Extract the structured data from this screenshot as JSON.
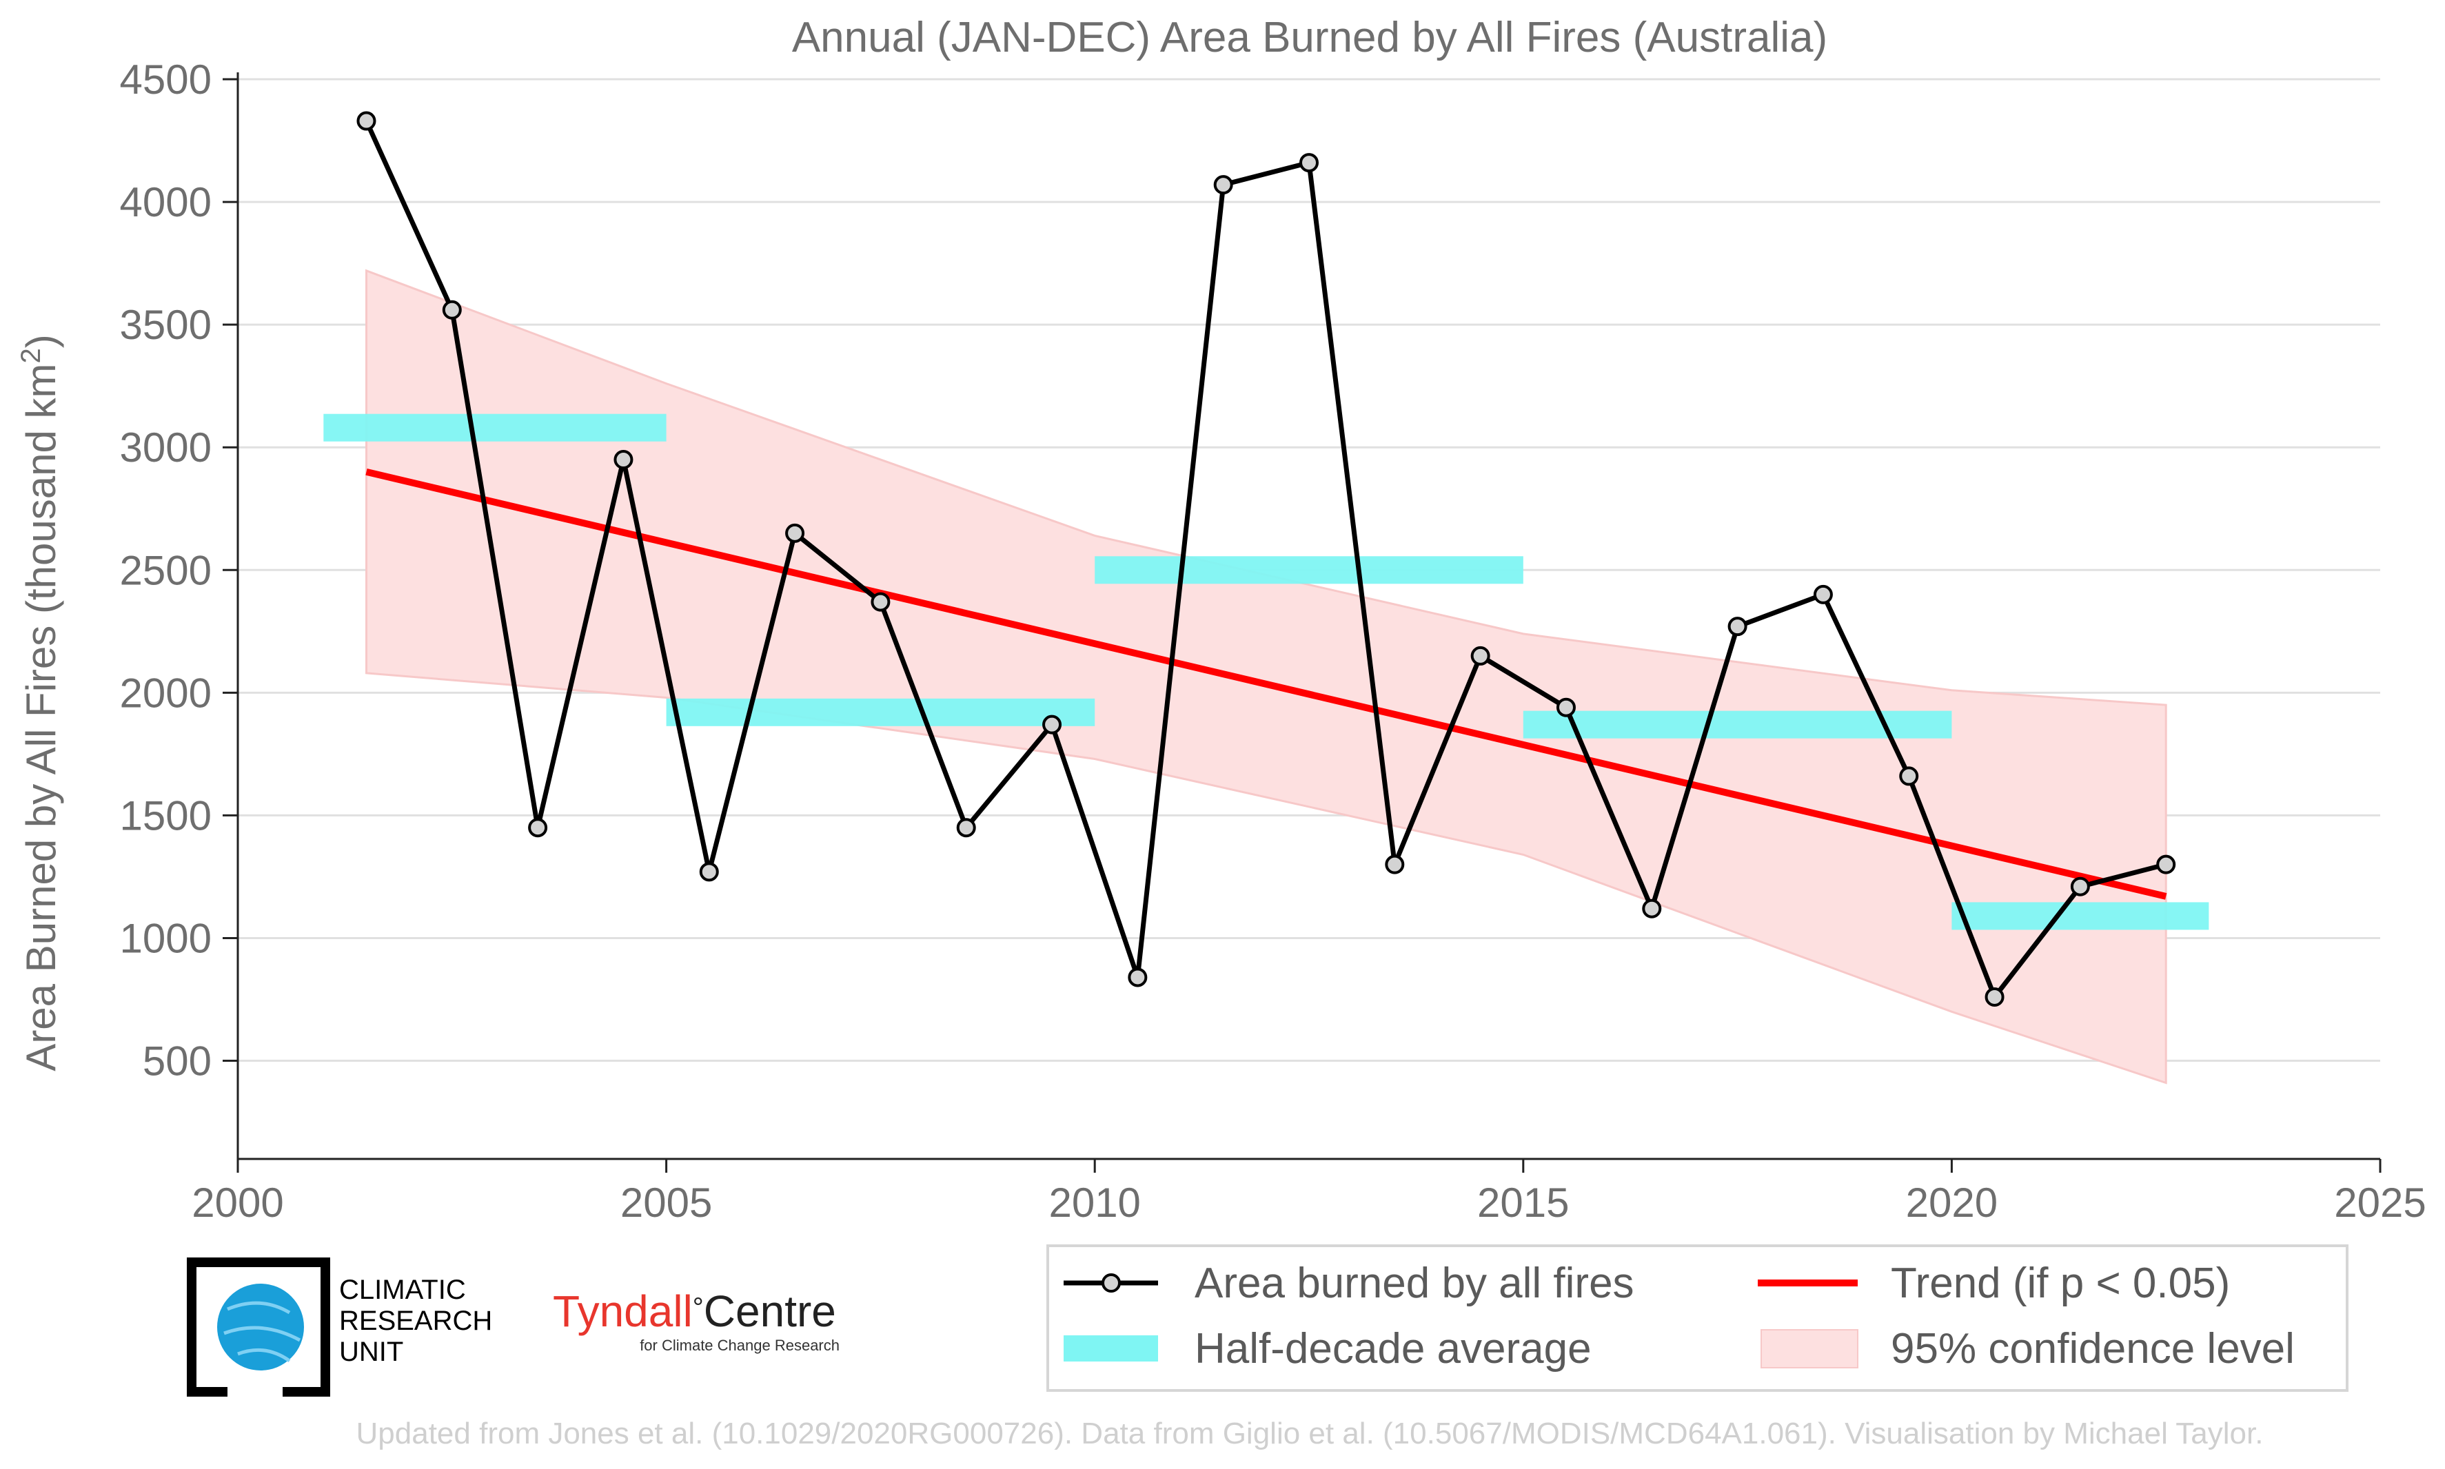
{
  "chart_data": {
    "type": "line",
    "title": "Annual (JAN-DEC) Area Burned by All Fires (Australia)",
    "ylabel_main": "Area Burned by All Fires (thousand km",
    "ylabel_sup": "2",
    "ylabel_close": ")",
    "xlim": [
      2000,
      2025
    ],
    "ylim": [
      100,
      4500
    ],
    "xticks": [
      2000,
      2005,
      2010,
      2015,
      2020,
      2025
    ],
    "yticks": [
      500,
      1000,
      1500,
      2000,
      2500,
      3000,
      3500,
      4000,
      4500
    ],
    "grid": true,
    "series": [
      {
        "name": "Area burned by all fires",
        "x": [
          2001.5,
          2002.5,
          2003.5,
          2004.5,
          2005.5,
          2006.5,
          2007.5,
          2008.5,
          2009.5,
          2010.5,
          2011.5,
          2012.5,
          2013.5,
          2014.5,
          2015.5,
          2016.5,
          2017.5,
          2018.5,
          2019.5,
          2020.5,
          2021.5,
          2022.5
        ],
        "values": [
          4330,
          3560,
          1450,
          2950,
          1270,
          2650,
          2370,
          1450,
          1870,
          840,
          4070,
          4160,
          1300,
          2150,
          1940,
          1120,
          2270,
          2400,
          1660,
          760,
          1210,
          1300
        ]
      }
    ],
    "half_decade_averages": {
      "name": "Half-decade average",
      "segments": [
        {
          "x0": 2001,
          "x1": 2005,
          "y": 3080
        },
        {
          "x0": 2005,
          "x1": 2010,
          "y": 1920
        },
        {
          "x0": 2010,
          "x1": 2015,
          "y": 2500
        },
        {
          "x0": 2015,
          "x1": 2020,
          "y": 1870
        },
        {
          "x0": 2020,
          "x1": 2023,
          "y": 1090
        }
      ]
    },
    "trend": {
      "name": "Trend (if p < 0.05)",
      "x": [
        2001.5,
        2022.5
      ],
      "y": [
        2900,
        1170
      ]
    },
    "confidence_band": {
      "name": "95% confidence level",
      "x": [
        2001.5,
        2005,
        2010,
        2015,
        2020,
        2022.5
      ],
      "upper": [
        3720,
        3260,
        2640,
        2240,
        2010,
        1950
      ],
      "lower": [
        2080,
        1980,
        1730,
        1340,
        700,
        410
      ]
    },
    "legend": {
      "placement": "bottom-right",
      "items": [
        "Area burned by all fires",
        "Trend (if p < 0.05)",
        "Half-decade average",
        "95% confidence level"
      ]
    },
    "colors": {
      "series": "#000000",
      "marker_fill": "#d3d3d3",
      "trend": "#ff0000",
      "half_decade": "#7ff5f3",
      "band": "#fde0e0",
      "band_edge": "#f7c8c8",
      "grid": "#e0e0e0",
      "axis": "#222222",
      "tyndall_red": "#e8362d"
    }
  },
  "logos": {
    "cru_line1": "CLIMATIC",
    "cru_line2": "RESEARCH",
    "cru_line3": "UNIT",
    "tyndall_main": "Tyndall",
    "tyndall_degree": "°",
    "tyndall_centre": "Centre",
    "tyndall_sub": "for Climate Change Research"
  },
  "footnote": "Updated from Jones et al. (10.1029/2020RG000726). Data from Giglio et al. (10.5067/MODIS/MCD64A1.061). Visualisation by Michael Taylor."
}
